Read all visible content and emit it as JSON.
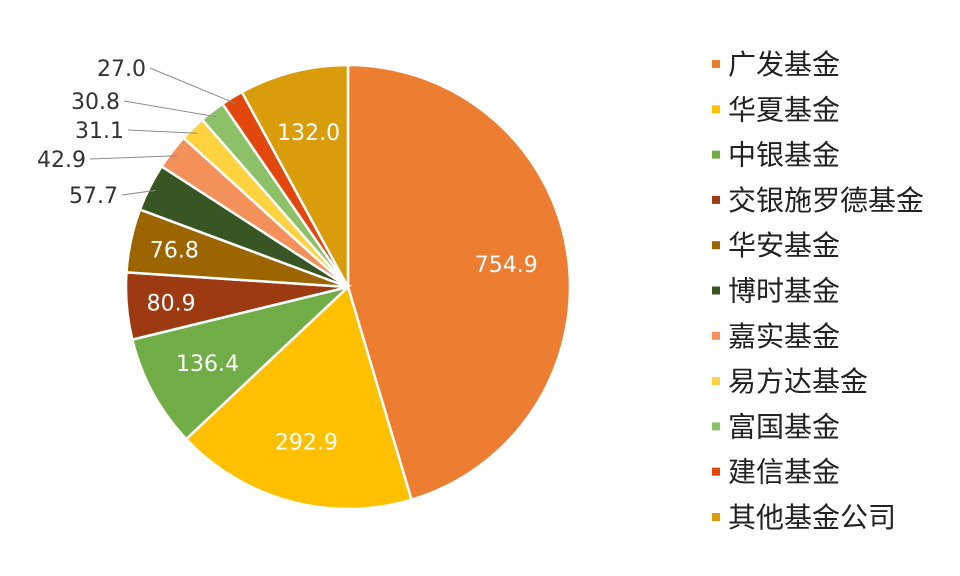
{
  "chart_data": {
    "type": "pie",
    "title": "",
    "legend_position": "right",
    "slices": [
      {
        "name": "广发基金",
        "value": 754.9,
        "label": "754.9",
        "color": "#ED7D31",
        "label_pos": "inside"
      },
      {
        "name": "华夏基金",
        "value": 292.9,
        "label": "292.9",
        "color": "#FFC000",
        "label_pos": "inside"
      },
      {
        "name": "中银基金",
        "value": 136.4,
        "label": "136.4",
        "color": "#70AD47",
        "label_pos": "inside"
      },
      {
        "name": "交银施罗德基金",
        "value": 80.9,
        "label": "80.9",
        "color": "#9E3A12",
        "label_pos": "inside"
      },
      {
        "name": "华安基金",
        "value": 76.8,
        "label": "76.8",
        "color": "#9C6500",
        "label_pos": "inside"
      },
      {
        "name": "博时基金",
        "value": 57.7,
        "label": "57.7",
        "color": "#375623",
        "label_pos": "outside"
      },
      {
        "name": "嘉实基金",
        "value": 42.9,
        "label": "42.9",
        "color": "#F4915A",
        "label_pos": "outside"
      },
      {
        "name": "易方达基金",
        "value": 31.1,
        "label": "31.1",
        "color": "#FFD23F",
        "label_pos": "outside"
      },
      {
        "name": "富国基金",
        "value": 30.8,
        "label": "30.8",
        "color": "#8CC168",
        "label_pos": "outside"
      },
      {
        "name": "建信基金",
        "value": 27.0,
        "label": "27.0",
        "color": "#E2470E",
        "label_pos": "outside"
      },
      {
        "name": "其他基金公司",
        "value": 132.0,
        "label": "132.0",
        "color": "#D99C0A",
        "label_pos": "inside"
      }
    ]
  }
}
